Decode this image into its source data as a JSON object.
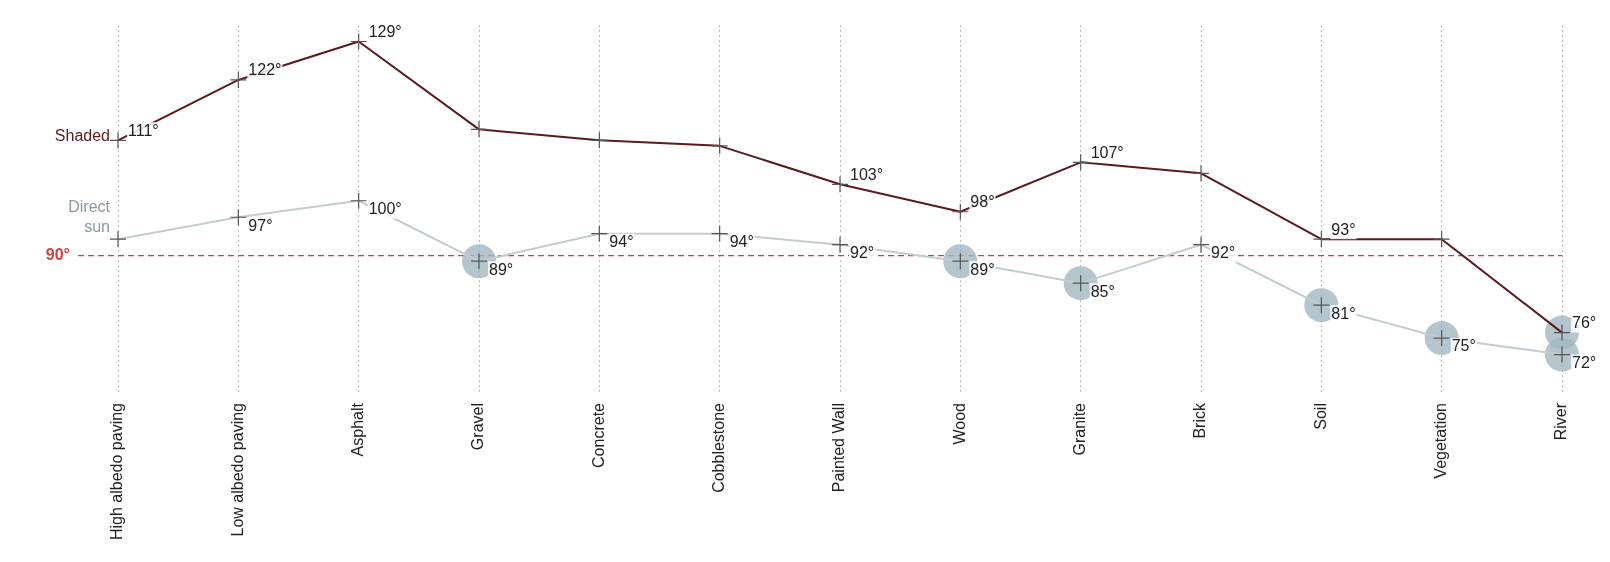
{
  "chart_data": {
    "type": "line",
    "categories": [
      "High albedo paving",
      "Low albedo paving",
      "Asphalt",
      "Gravel",
      "Concrete",
      "Cobblestone",
      "Painted Wall",
      "Wood",
      "Granite",
      "Brick",
      "Soil",
      "Vegetation",
      "River"
    ],
    "series": [
      {
        "name": "Shaded",
        "color": "#5c1a1f",
        "values": [
          111,
          122,
          129,
          113,
          111,
          110,
          103,
          98,
          107,
          105,
          93,
          93,
          76
        ],
        "value_labels": [
          "111°",
          "122°",
          "129°",
          null,
          null,
          null,
          "103°",
          "98°",
          "107°",
          null,
          "93°",
          null,
          "76°"
        ]
      },
      {
        "name": "Direct sun",
        "color": "#c3ccd1",
        "values": [
          93,
          97,
          100,
          89,
          94,
          94,
          92,
          89,
          85,
          92,
          81,
          75,
          72
        ],
        "value_labels": [
          null,
          "97°",
          "100°",
          "89°",
          "94°",
          "94°",
          "92°",
          "89°",
          "85°",
          "92°",
          "81°",
          "75°",
          "72°"
        ]
      },
      {
        "type": "scatter",
        "color": "#a3b7c2",
        "marker": "circle",
        "x": [
          "Gravel",
          "Wood",
          "Granite",
          "Soil",
          "Vegetation",
          "River",
          "River"
        ],
        "values": [
          89,
          89,
          85,
          81,
          75,
          72,
          76
        ]
      }
    ],
    "ylim": [
      65,
      132
    ],
    "tick_labels": "x",
    "grid": "x",
    "marker": "cross",
    "line_style": "solid",
    "legend": false,
    "ref_lines": [
      {
        "axis": "y",
        "value": 90,
        "label": "90°",
        "color": "#d0413d",
        "line_style": "dashed"
      }
    ]
  }
}
